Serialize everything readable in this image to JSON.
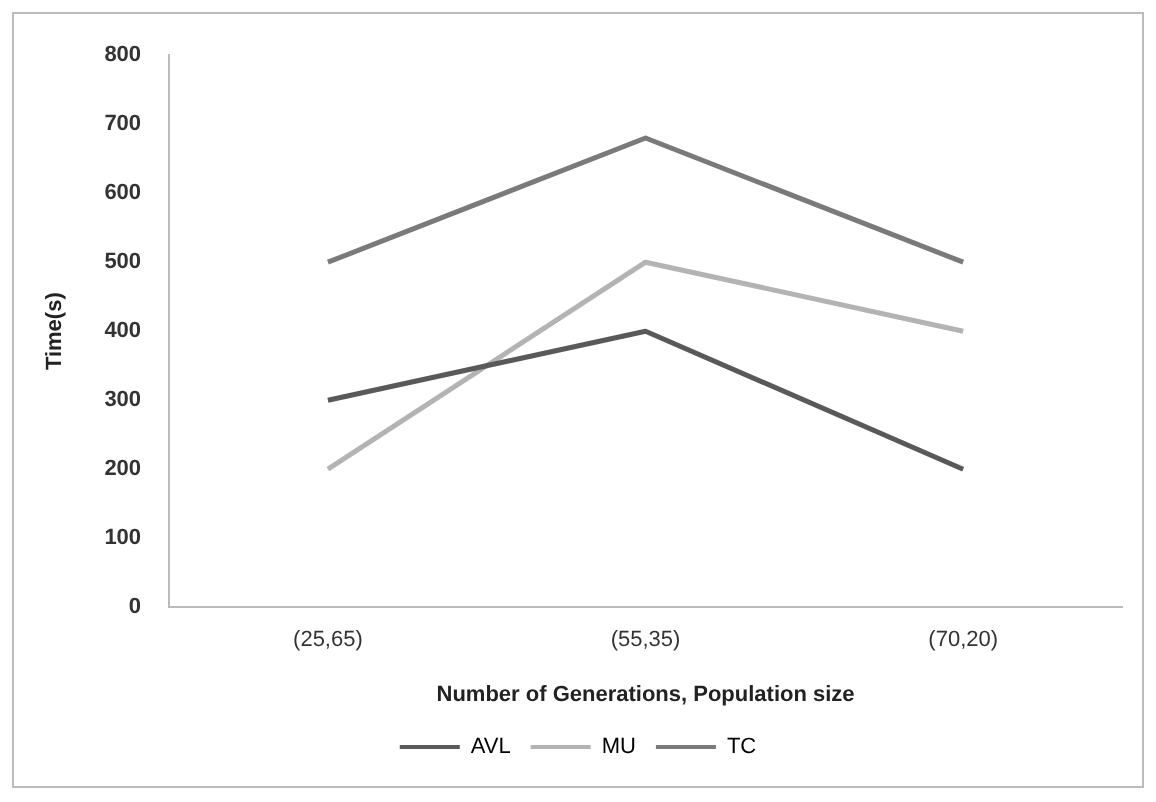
{
  "chart_data": {
    "type": "line",
    "xlabel": "Number of Generations, Population size",
    "ylabel": "Time(s)",
    "categories": [
      "(25,65)",
      "(55,35)",
      "(70,20)"
    ],
    "series": [
      {
        "name": "AVL",
        "color": "#595959",
        "values": [
          300,
          400,
          200
        ]
      },
      {
        "name": "MU",
        "color": "#b3b3b3",
        "values": [
          200,
          500,
          400
        ]
      },
      {
        "name": "TC",
        "color": "#7a7a7a",
        "values": [
          500,
          680,
          500
        ]
      }
    ],
    "ylim": [
      0,
      800
    ],
    "yticks": [
      0,
      100,
      200,
      300,
      400,
      500,
      600,
      700,
      800
    ],
    "grid": false,
    "legend": "bottom",
    "marker": "none",
    "line_style": "solid"
  }
}
